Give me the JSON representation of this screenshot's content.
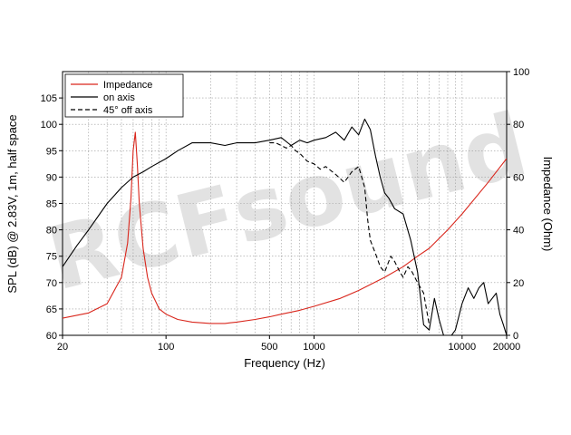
{
  "chart_data": {
    "type": "line",
    "xlabel": "Frequency (Hz)",
    "ylabel": "SPL (dB) @ 2.83V, 1m, half space",
    "y2label": "Impedance (Ohm)",
    "xscale": "log",
    "xlim": [
      20,
      20000
    ],
    "ylim": [
      60,
      110
    ],
    "y2lim": [
      0,
      100
    ],
    "grid": true,
    "legend_position": "top-left",
    "watermark": "RCFsound",
    "x_ticks": [
      {
        "value": 20,
        "label": "20"
      },
      {
        "value": 100,
        "label": "100"
      },
      {
        "value": 500,
        "label": "500"
      },
      {
        "value": 1000,
        "label": "1000"
      },
      {
        "value": 10000,
        "label": "10000"
      },
      {
        "value": 20000,
        "label": "20000"
      }
    ],
    "y_ticks": [
      {
        "value": 60,
        "label": "60"
      },
      {
        "value": 65,
        "label": "65"
      },
      {
        "value": 70,
        "label": "70"
      },
      {
        "value": 75,
        "label": "75"
      },
      {
        "value": 80,
        "label": "80"
      },
      {
        "value": 85,
        "label": "85"
      },
      {
        "value": 90,
        "label": "90"
      },
      {
        "value": 95,
        "label": "95"
      },
      {
        "value": 100,
        "label": "100"
      },
      {
        "value": 105,
        "label": "105"
      }
    ],
    "y2_ticks": [
      {
        "value": 0,
        "label": "0"
      },
      {
        "value": 20,
        "label": "20"
      },
      {
        "value": 40,
        "label": "40"
      },
      {
        "value": 60,
        "label": "60"
      },
      {
        "value": 80,
        "label": "80"
      },
      {
        "value": 100,
        "label": "100"
      }
    ],
    "series": [
      {
        "name": "Impedance",
        "axis": "right",
        "color": "#d9261c",
        "dash": "solid",
        "x": [
          20,
          30,
          40,
          50,
          55,
          58,
          60,
          62,
          64,
          66,
          70,
          75,
          80,
          90,
          100,
          120,
          150,
          200,
          250,
          300,
          400,
          500,
          600,
          800,
          1000,
          1500,
          2000,
          3000,
          4000,
          5000,
          6000,
          8000,
          10000,
          15000,
          20000
        ],
        "y": [
          6.5,
          8.5,
          12,
          22,
          35,
          52,
          70,
          77,
          65,
          50,
          33,
          22,
          16,
          10,
          8,
          6,
          5,
          4.5,
          4.5,
          5,
          6,
          7,
          8,
          9.5,
          11,
          14,
          17,
          22,
          26,
          30,
          33,
          40,
          46,
          58,
          67
        ]
      },
      {
        "name": "on axis",
        "axis": "left",
        "color": "#000000",
        "dash": "solid",
        "x": [
          20,
          25,
          30,
          40,
          50,
          60,
          70,
          80,
          100,
          120,
          150,
          180,
          200,
          250,
          300,
          400,
          500,
          600,
          700,
          800,
          900,
          1000,
          1200,
          1400,
          1600,
          1800,
          2000,
          2200,
          2400,
          2600,
          2800,
          3000,
          3200,
          3500,
          4000,
          4500,
          5000,
          5200,
          5500,
          6000,
          6500,
          7000,
          7500,
          8000,
          9000,
          10000,
          11000,
          12000,
          13000,
          14000,
          15000,
          17000,
          18000,
          19000,
          20000
        ],
        "y": [
          73,
          77,
          80,
          85,
          88,
          90,
          91,
          92,
          93.5,
          95,
          96.5,
          96.5,
          96.5,
          96,
          96.5,
          96.5,
          97,
          97.5,
          96,
          97,
          96.5,
          97,
          97.5,
          98.5,
          97,
          99.5,
          98,
          101,
          99,
          94,
          90,
          87,
          86,
          84,
          83,
          78,
          72,
          68,
          62,
          61,
          67,
          63,
          60,
          59,
          61,
          66,
          69,
          67,
          69,
          70,
          66,
          68,
          64,
          62,
          60
        ]
      },
      {
        "name": "45° off axis",
        "axis": "left",
        "color": "#000000",
        "dash": "dashed",
        "x": [
          500,
          550,
          600,
          650,
          700,
          750,
          800,
          900,
          1000,
          1100,
          1200,
          1400,
          1600,
          1800,
          2000,
          2100,
          2200,
          2300,
          2400,
          2600,
          2800,
          3000,
          3300,
          3500,
          3800,
          4000,
          4300,
          4600,
          5000,
          5500,
          6000
        ],
        "y": [
          96.5,
          96.5,
          96,
          95.5,
          96,
          95,
          94.5,
          93,
          92.5,
          91.5,
          92,
          90.5,
          89,
          91,
          92,
          90,
          88,
          82,
          78,
          75.5,
          73,
          72,
          75,
          74,
          72,
          71,
          73,
          72,
          70,
          68,
          62
        ]
      }
    ]
  }
}
